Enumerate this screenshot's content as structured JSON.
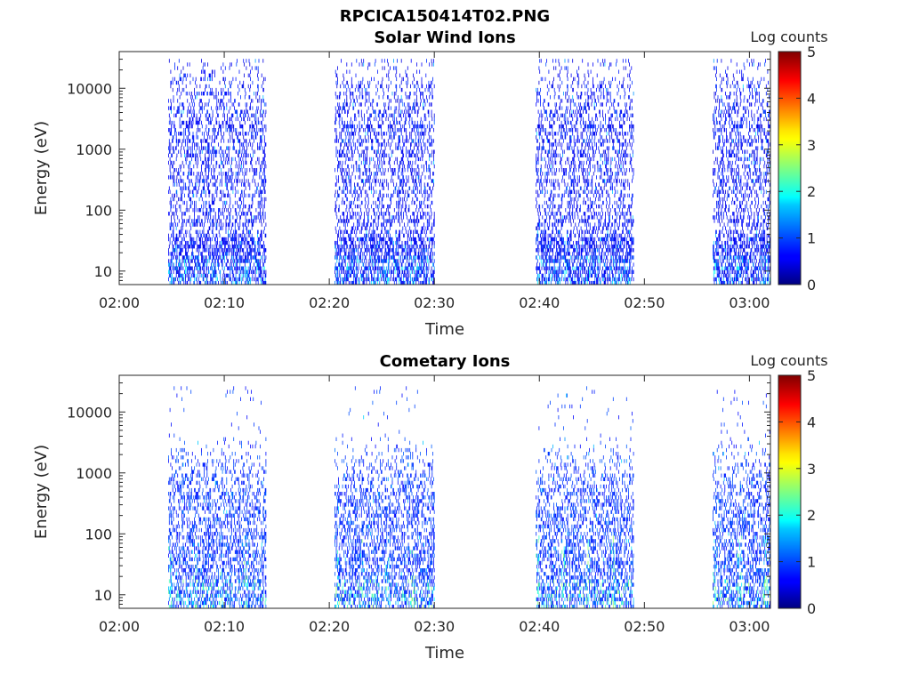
{
  "figure": {
    "title": "RPCICA150414T02.PNG"
  },
  "chart_data": [
    {
      "type": "heatmap",
      "title": "Solar Wind Ions",
      "xlabel": "Time",
      "ylabel": "Energy (eV)",
      "xlim": [
        "02:00",
        "03:02"
      ],
      "ylim": [
        6,
        40000
      ],
      "yscale": "log",
      "x_ticks": [
        "02:00",
        "02:10",
        "02:20",
        "02:30",
        "02:40",
        "02:50",
        "03:00"
      ],
      "y_ticks": [
        {
          "value": 10,
          "label": "10"
        },
        {
          "value": 100,
          "label": "100"
        },
        {
          "value": 1000,
          "label": "1000"
        },
        {
          "value": 10000,
          "label": "10000"
        }
      ],
      "colorbar": {
        "label": "Log counts",
        "min": 0,
        "max": 5,
        "ticks": [
          "0",
          "1",
          "2",
          "3",
          "4",
          "5"
        ],
        "colormap": "jet"
      },
      "activity_intervals": [
        {
          "start": "02:04:40",
          "end": "02:14:00"
        },
        {
          "start": "02:20:30",
          "end": "02:30:00"
        },
        {
          "start": "02:39:40",
          "end": "02:49:00"
        },
        {
          "start": "02:56:30",
          "end": "03:02:00"
        }
      ],
      "typical_log_counts": 0.4,
      "peak_log_counts": 2.0,
      "energy_range_eV": [
        6,
        30000
      ]
    },
    {
      "type": "heatmap",
      "title": "Cometary Ions",
      "xlabel": "Time",
      "ylabel": "Energy (eV)",
      "xlim": [
        "02:00",
        "03:02"
      ],
      "ylim": [
        6,
        40000
      ],
      "yscale": "log",
      "x_ticks": [
        "02:00",
        "02:10",
        "02:20",
        "02:30",
        "02:40",
        "02:50",
        "03:00"
      ],
      "y_ticks": [
        {
          "value": 10,
          "label": "10"
        },
        {
          "value": 100,
          "label": "100"
        },
        {
          "value": 1000,
          "label": "1000"
        },
        {
          "value": 10000,
          "label": "10000"
        }
      ],
      "colorbar": {
        "label": "Log counts",
        "min": 0,
        "max": 5,
        "ticks": [
          "0",
          "1",
          "2",
          "3",
          "4",
          "5"
        ],
        "colormap": "jet"
      },
      "activity_intervals": [
        {
          "start": "02:04:40",
          "end": "02:14:00"
        },
        {
          "start": "02:20:30",
          "end": "02:30:00"
        },
        {
          "start": "02:39:40",
          "end": "02:49:00"
        },
        {
          "start": "02:56:30",
          "end": "03:02:00"
        }
      ],
      "typical_log_counts": 0.6,
      "peak_log_counts": 2.7,
      "energy_range_eV": [
        6,
        25000
      ]
    }
  ]
}
